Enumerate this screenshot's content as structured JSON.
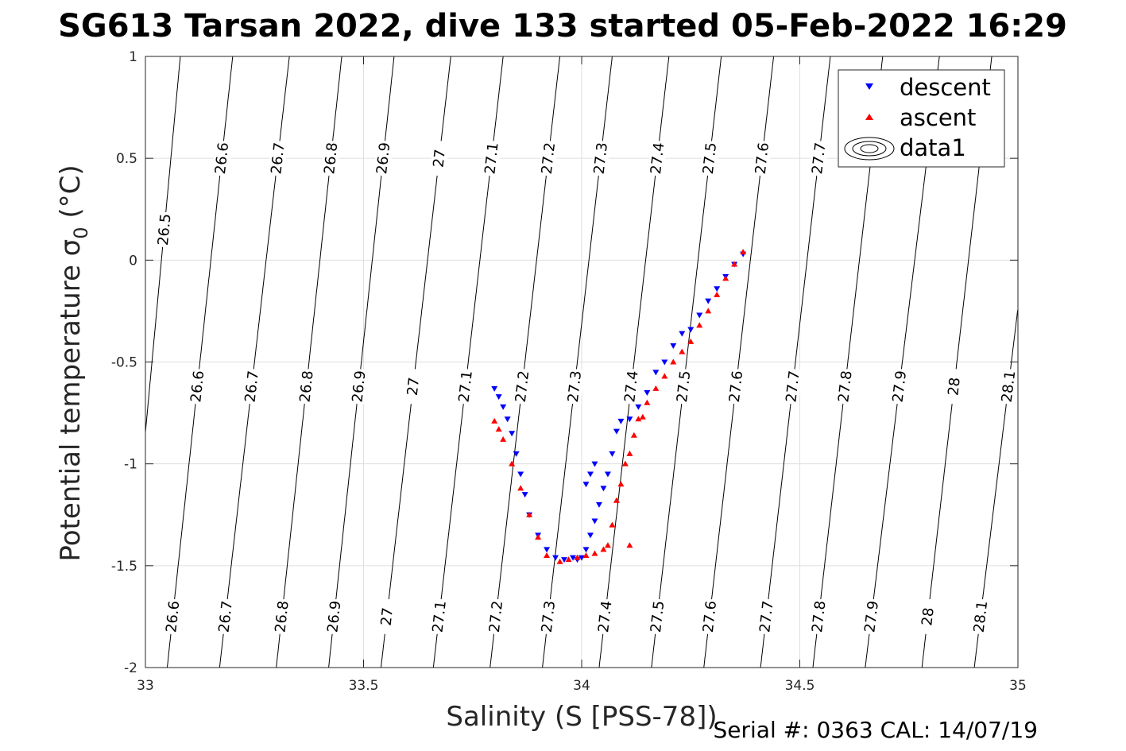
{
  "title": "SG613 Tarsan 2022, dive 133 started 05-Feb-2022 16:29",
  "footer": "Serial #: 0363  CAL: 14/07/19",
  "colors": {
    "descent": "#0000ff",
    "ascent": "#ff0000",
    "grid": "#dfdfdf",
    "contour": "#000000"
  },
  "chart_data": {
    "type": "scatter",
    "xlabel": "Salinity (S [PSS-78])",
    "ylabel_main": "Potential temperature ",
    "ylabel_sigma": "σ",
    "ylabel_sub": "0",
    "ylabel_unit": " (°C)",
    "xlim": [
      33,
      35
    ],
    "ylim": [
      -2,
      1
    ],
    "xticks": [
      33,
      33.5,
      34,
      34.5,
      35
    ],
    "yticks": [
      1,
      0.5,
      0,
      -0.5,
      -1,
      -1.5,
      -2
    ],
    "xtick_labels": [
      "33",
      "33.5",
      "34",
      "34.5",
      "35"
    ],
    "ytick_labels": [
      "1",
      "0.5",
      "0",
      "-0.5",
      "-1",
      "-1.5",
      "-2"
    ],
    "grid": true,
    "legend": {
      "placement": "top-right",
      "entries": [
        "descent",
        "ascent",
        "data1"
      ]
    },
    "density_contours": {
      "levels": [
        "26.5",
        "26.6",
        "26.7",
        "26.8",
        "26.9",
        "27",
        "27.1",
        "27.2",
        "27.3",
        "27.4",
        "27.5",
        "27.6",
        "27.7",
        "27.8",
        "27.9",
        "28",
        "28.1"
      ],
      "lines": [
        {
          "level": "26.5",
          "s_at_top": 33.08,
          "s_at_bottom": 32.95
        },
        {
          "level": "26.6",
          "s_at_top": 33.2,
          "s_at_bottom": 33.05
        },
        {
          "level": "26.7",
          "s_at_top": 33.33,
          "s_at_bottom": 33.17
        },
        {
          "level": "26.8",
          "s_at_top": 33.45,
          "s_at_bottom": 33.3
        },
        {
          "level": "26.9",
          "s_at_top": 33.57,
          "s_at_bottom": 33.42
        },
        {
          "level": "27",
          "s_at_top": 33.7,
          "s_at_bottom": 33.54
        },
        {
          "level": "27.1",
          "s_at_top": 33.82,
          "s_at_bottom": 33.66
        },
        {
          "level": "27.2",
          "s_at_top": 33.95,
          "s_at_bottom": 33.79
        },
        {
          "level": "27.3",
          "s_at_top": 34.07,
          "s_at_bottom": 33.91
        },
        {
          "level": "27.4",
          "s_at_top": 34.2,
          "s_at_bottom": 34.04
        },
        {
          "level": "27.5",
          "s_at_top": 34.32,
          "s_at_bottom": 34.16
        },
        {
          "level": "27.6",
          "s_at_top": 34.44,
          "s_at_bottom": 34.28
        },
        {
          "level": "27.7",
          "s_at_top": 34.57,
          "s_at_bottom": 34.41
        },
        {
          "level": "27.8",
          "s_at_top": 34.69,
          "s_at_bottom": 34.53
        },
        {
          "level": "27.9",
          "s_at_top": 34.82,
          "s_at_bottom": 34.65
        },
        {
          "level": "28",
          "s_at_top": 34.94,
          "s_at_bottom": 34.78
        },
        {
          "level": "28.1",
          "s_at_top": 35.07,
          "s_at_bottom": 34.9
        }
      ],
      "label_rows": [
        {
          "theta": 0.5,
          "levels": [
            "26.6",
            "26.7",
            "26.8",
            "26.9",
            "27",
            "27.1",
            "27.2",
            "27.3",
            "27.4",
            "27.5",
            "27.6",
            "27.7"
          ]
        },
        {
          "theta": -0.62,
          "levels": [
            "26.6",
            "26.7",
            "26.8",
            "26.9",
            "27",
            "27.1",
            "27.2",
            "27.3",
            "27.4",
            "27.5",
            "27.6",
            "27.7",
            "27.8",
            "27.9",
            "28",
            "28.1"
          ]
        },
        {
          "theta": -1.75,
          "levels": [
            "26.6",
            "26.7",
            "26.8",
            "26.9",
            "27",
            "27.1",
            "27.2",
            "27.3",
            "27.4",
            "27.5",
            "27.6",
            "27.7",
            "27.8",
            "27.9",
            "28",
            "28.1"
          ]
        },
        {
          "theta": 0.15,
          "levels": [
            "26.5"
          ]
        }
      ]
    },
    "series": [
      {
        "name": "descent",
        "marker": "triangle-down",
        "s": [
          34.37,
          34.35,
          34.33,
          34.31,
          34.29,
          34.27,
          34.25,
          34.23,
          34.21,
          34.19,
          34.17,
          34.15,
          34.13,
          34.11,
          34.09,
          34.08,
          34.07,
          34.06,
          34.05,
          34.04,
          34.03,
          34.02,
          34.01,
          34.03,
          34.02,
          34.01,
          34.0,
          33.99,
          33.98,
          33.96,
          33.94,
          33.92,
          33.9,
          33.88,
          33.87,
          33.86,
          33.85,
          33.84,
          33.83,
          33.82,
          33.81,
          33.8
        ],
        "theta": [
          0.03,
          -0.02,
          -0.08,
          -0.14,
          -0.2,
          -0.27,
          -0.34,
          -0.36,
          -0.42,
          -0.5,
          -0.55,
          -0.65,
          -0.72,
          -0.78,
          -0.79,
          -0.84,
          -0.95,
          -1.05,
          -1.12,
          -1.2,
          -1.28,
          -1.35,
          -1.42,
          -1.0,
          -1.05,
          -1.1,
          -1.46,
          -1.47,
          -1.46,
          -1.47,
          -1.46,
          -1.42,
          -1.35,
          -1.25,
          -1.15,
          -1.05,
          -0.95,
          -0.85,
          -0.78,
          -0.72,
          -0.67,
          -0.63
        ]
      },
      {
        "name": "ascent",
        "marker": "triangle-up",
        "s": [
          34.37,
          34.35,
          34.33,
          34.31,
          34.29,
          34.27,
          34.25,
          34.23,
          34.21,
          34.19,
          34.17,
          34.15,
          34.14,
          34.13,
          34.12,
          34.11,
          34.1,
          34.09,
          34.08,
          34.07,
          34.06,
          34.05,
          34.03,
          34.01,
          33.99,
          33.97,
          33.95,
          33.92,
          33.9,
          33.88,
          33.86,
          33.84,
          33.82,
          33.81,
          33.8,
          34.11
        ],
        "theta": [
          0.04,
          -0.02,
          -0.09,
          -0.17,
          -0.25,
          -0.32,
          -0.4,
          -0.45,
          -0.5,
          -0.57,
          -0.63,
          -0.7,
          -0.77,
          -0.78,
          -0.86,
          -0.95,
          -1.0,
          -1.1,
          -1.18,
          -1.3,
          -1.4,
          -1.42,
          -1.44,
          -1.45,
          -1.46,
          -1.47,
          -1.48,
          -1.45,
          -1.36,
          -1.25,
          -1.12,
          -1.0,
          -0.88,
          -0.83,
          -0.79,
          -1.4
        ]
      }
    ]
  }
}
